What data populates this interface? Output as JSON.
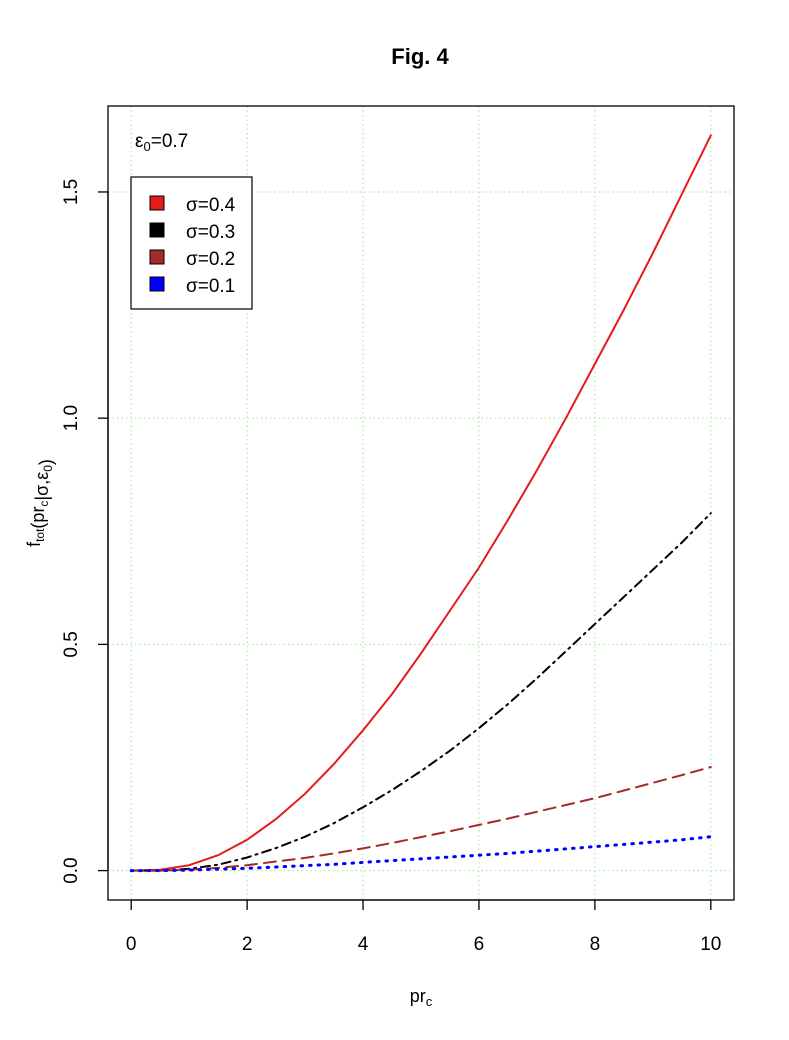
{
  "chart_data": {
    "type": "line",
    "title": "Fig. 4",
    "xlabel": {
      "base": "pr",
      "sub": "c"
    },
    "ylabel": {
      "parts": [
        {
          "t": "f",
          "sub": "tot"
        },
        {
          "t": "(pr",
          "sub": "c"
        },
        {
          "t": "|σ,ε",
          "sub": "0"
        },
        {
          "t": ")"
        }
      ]
    },
    "annotation": {
      "base": "ε",
      "sub": "0",
      "rest": "=0.7"
    },
    "xlim": [
      -0.4,
      10.4
    ],
    "ylim": [
      -0.065,
      1.69
    ],
    "x_ticks": [
      0,
      2,
      4,
      6,
      8,
      10
    ],
    "x_tick_labels": [
      "0",
      "2",
      "4",
      "6",
      "8",
      "10"
    ],
    "y_ticks": [
      0.0,
      0.5,
      1.0,
      1.5
    ],
    "y_tick_labels": [
      "0.0",
      "0.5",
      "1.0",
      "1.5"
    ],
    "grid": true,
    "legend_position": "top-left",
    "x": [
      0,
      0.5,
      1,
      1.5,
      2,
      2.5,
      3,
      3.5,
      4,
      4.5,
      5,
      5.5,
      6,
      6.5,
      7,
      7.5,
      8,
      8.5,
      9,
      9.5,
      10
    ],
    "series": [
      {
        "name": "σ=0.4",
        "color": "#e41a1c",
        "style": "solid",
        "values": [
          0.0,
          0.002,
          0.012,
          0.034,
          0.068,
          0.114,
          0.17,
          0.236,
          0.31,
          0.39,
          0.48,
          0.575,
          0.67,
          0.775,
          0.885,
          1.0,
          1.12,
          1.24,
          1.365,
          1.495,
          1.625
        ]
      },
      {
        "name": "σ=0.3",
        "color": "#000000",
        "style": "dashdot",
        "values": [
          0.0,
          0.0,
          0.004,
          0.013,
          0.029,
          0.05,
          0.075,
          0.105,
          0.14,
          0.178,
          0.22,
          0.265,
          0.315,
          0.368,
          0.425,
          0.485,
          0.545,
          0.605,
          0.665,
          0.725,
          0.79
        ]
      },
      {
        "name": "σ=0.2",
        "color": "#a52a2a",
        "style": "dashed",
        "values": [
          0.0,
          0.0,
          0.002,
          0.006,
          0.012,
          0.02,
          0.028,
          0.038,
          0.049,
          0.061,
          0.074,
          0.087,
          0.101,
          0.115,
          0.13,
          0.145,
          0.16,
          0.177,
          0.194,
          0.211,
          0.229
        ]
      },
      {
        "name": "σ=0.1",
        "color": "#0000ff",
        "style": "dotted",
        "values": [
          0.0,
          0.0,
          0.001,
          0.003,
          0.005,
          0.008,
          0.011,
          0.014,
          0.018,
          0.022,
          0.026,
          0.03,
          0.034,
          0.038,
          0.043,
          0.048,
          0.053,
          0.058,
          0.063,
          0.068,
          0.075
        ]
      }
    ]
  }
}
